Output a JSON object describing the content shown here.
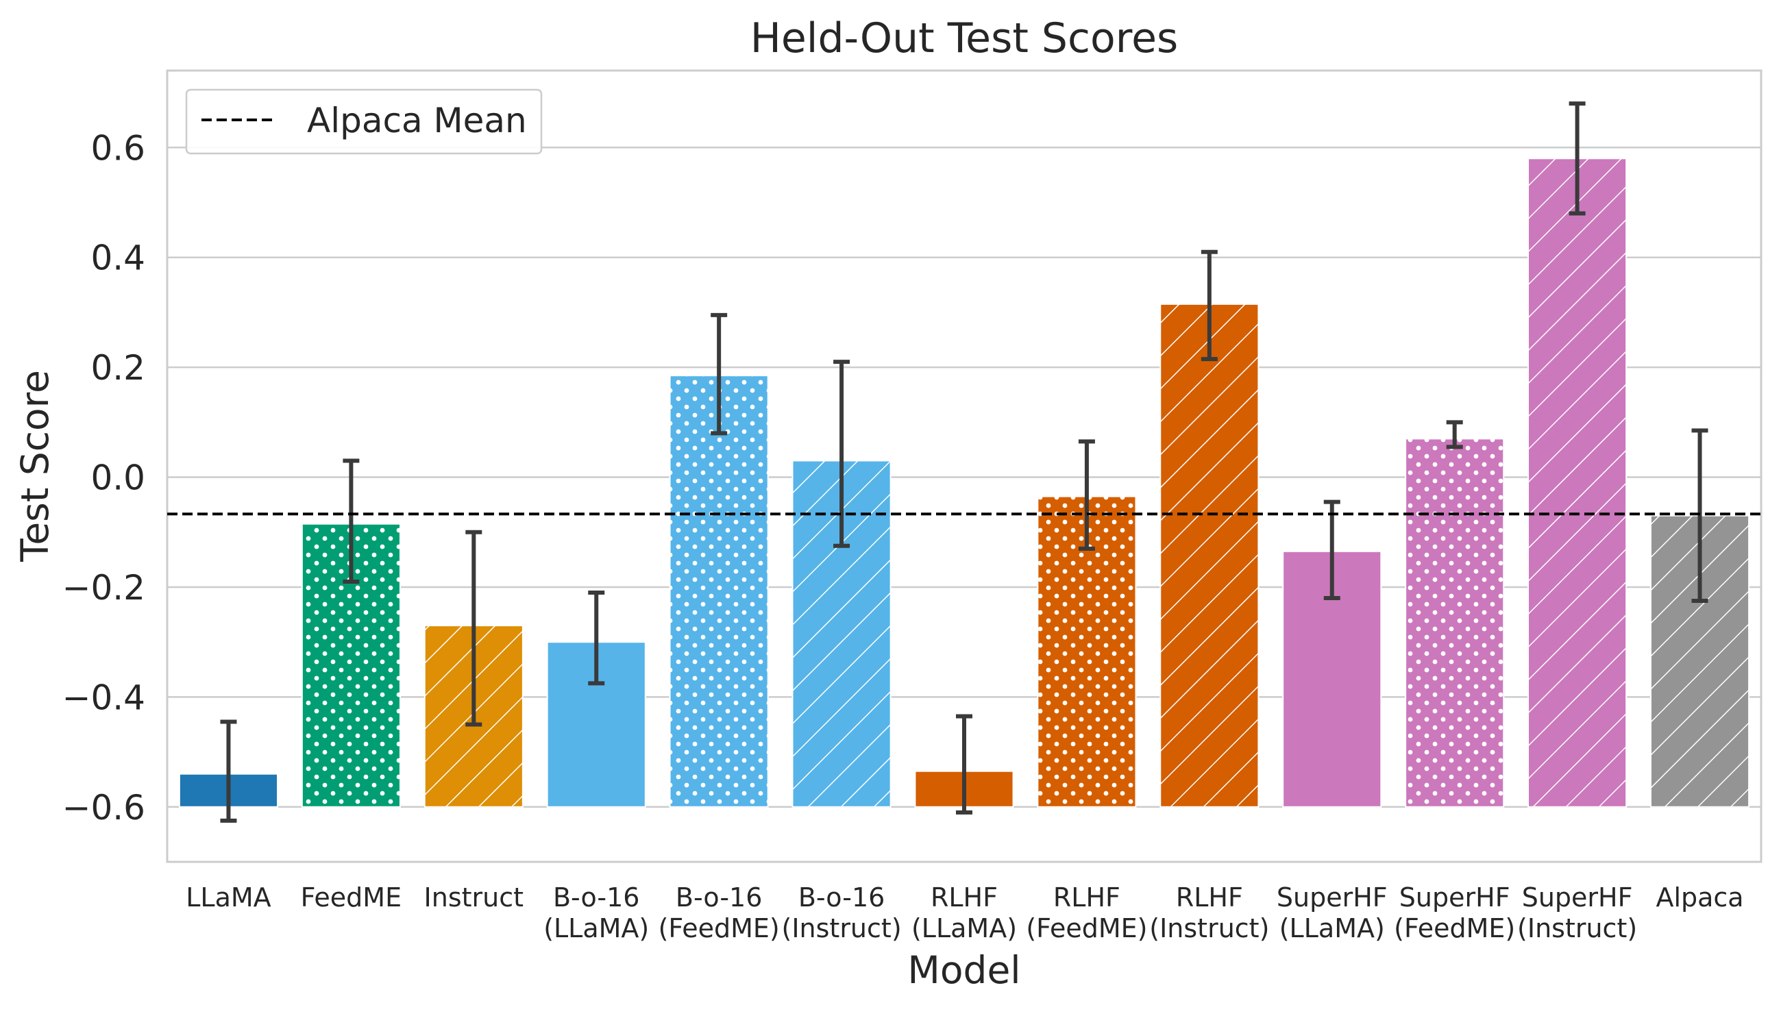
{
  "chart_data": {
    "type": "bar",
    "title": "Held-Out Test Scores",
    "xlabel": "Model",
    "ylabel": "Test Score",
    "ylim": [
      -0.7,
      0.74
    ],
    "grid": true,
    "yticks": [
      {
        "value": -0.6,
        "label": "−0.6"
      },
      {
        "value": -0.4,
        "label": "−0.4"
      },
      {
        "value": -0.2,
        "label": "−0.2"
      },
      {
        "value": 0.0,
        "label": "0.0"
      },
      {
        "value": 0.2,
        "label": "0.2"
      },
      {
        "value": 0.4,
        "label": "0.4"
      },
      {
        "value": 0.6,
        "label": "0.6"
      }
    ],
    "bars": [
      {
        "id": "llama",
        "label": [
          "LLaMA"
        ],
        "value": -0.54,
        "err_low": -0.625,
        "err_high": -0.445,
        "color": "#1f77b4",
        "pattern": "solid"
      },
      {
        "id": "feedme",
        "label": [
          "FeedME"
        ],
        "value": -0.085,
        "err_low": -0.19,
        "err_high": 0.03,
        "color": "#029e73",
        "pattern": "dots"
      },
      {
        "id": "instruct",
        "label": [
          "Instruct"
        ],
        "value": -0.27,
        "err_low": -0.45,
        "err_high": -0.1,
        "color": "#de8f05",
        "pattern": "hatch"
      },
      {
        "id": "bo16-llama",
        "label": [
          "B-o-16",
          "(LLaMA)"
        ],
        "value": -0.3,
        "err_low": -0.375,
        "err_high": -0.21,
        "color": "#56b4e9",
        "pattern": "solid"
      },
      {
        "id": "bo16-feedme",
        "label": [
          "B-o-16",
          "(FeedME)"
        ],
        "value": 0.185,
        "err_low": 0.08,
        "err_high": 0.295,
        "color": "#56b4e9",
        "pattern": "dots"
      },
      {
        "id": "bo16-instruct",
        "label": [
          "B-o-16",
          "(Instruct)"
        ],
        "value": 0.03,
        "err_low": -0.125,
        "err_high": 0.21,
        "color": "#56b4e9",
        "pattern": "hatch"
      },
      {
        "id": "rlhf-llama",
        "label": [
          "RLHF",
          "(LLaMA)"
        ],
        "value": -0.535,
        "err_low": -0.61,
        "err_high": -0.435,
        "color": "#d55e00",
        "pattern": "solid"
      },
      {
        "id": "rlhf-feedme",
        "label": [
          "RLHF",
          "(FeedME)"
        ],
        "value": -0.035,
        "err_low": -0.13,
        "err_high": 0.065,
        "color": "#d55e00",
        "pattern": "dots"
      },
      {
        "id": "rlhf-instruct",
        "label": [
          "RLHF",
          "(Instruct)"
        ],
        "value": 0.315,
        "err_low": 0.215,
        "err_high": 0.41,
        "color": "#d55e00",
        "pattern": "hatch"
      },
      {
        "id": "superhf-llama",
        "label": [
          "SuperHF",
          "(LLaMA)"
        ],
        "value": -0.135,
        "err_low": -0.22,
        "err_high": -0.045,
        "color": "#cc78bc",
        "pattern": "solid"
      },
      {
        "id": "superhf-feedme",
        "label": [
          "SuperHF",
          "(FeedME)"
        ],
        "value": 0.07,
        "err_low": 0.055,
        "err_high": 0.1,
        "color": "#cc78bc",
        "pattern": "dots"
      },
      {
        "id": "superhf-instruct",
        "label": [
          "SuperHF",
          "(Instruct)"
        ],
        "value": 0.58,
        "err_low": 0.48,
        "err_high": 0.68,
        "color": "#cc78bc",
        "pattern": "hatch"
      },
      {
        "id": "alpaca",
        "label": [
          "Alpaca"
        ],
        "value": -0.07,
        "err_low": -0.225,
        "err_high": 0.085,
        "color": "#949494",
        "pattern": "hatch"
      }
    ],
    "reference_line": {
      "label": "Alpaca Mean",
      "value": -0.067,
      "style": "dashed",
      "color": "#000000"
    },
    "legend": {
      "placement": "top-left",
      "entries": [
        "Alpaca Mean"
      ]
    }
  }
}
